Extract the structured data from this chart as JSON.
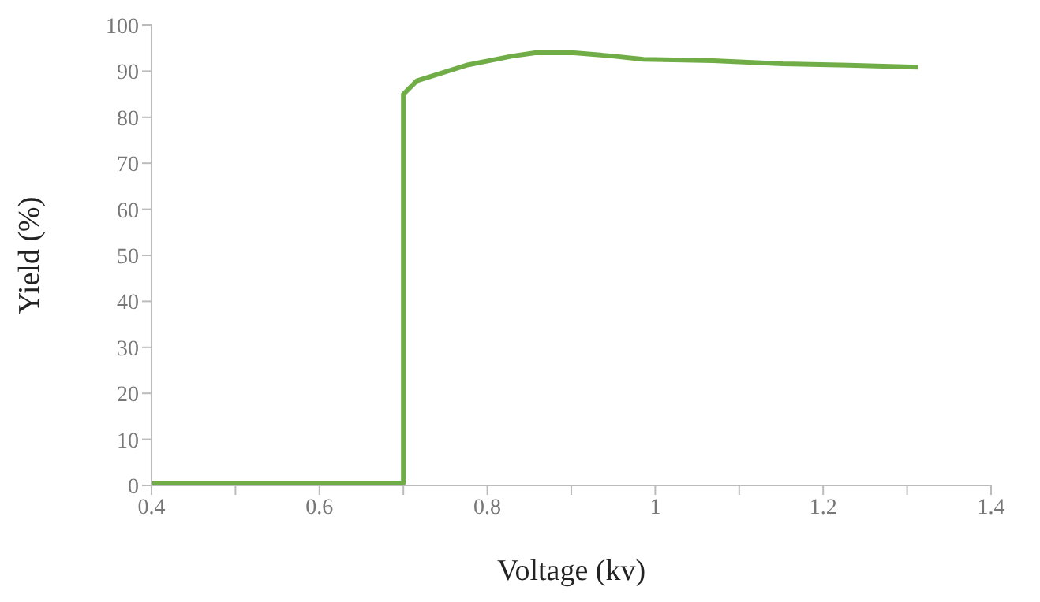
{
  "chart_data": {
    "type": "line",
    "xlabel": "Voltage (kv)",
    "ylabel": "Yield (%)",
    "x": [
      0.4,
      0.7,
      0.7,
      0.716,
      0.775,
      0.83,
      0.857,
      0.903,
      0.949,
      0.986,
      1.069,
      1.152,
      1.23,
      1.313
    ],
    "series": [
      {
        "color": "#70ad47",
        "values": [
          0.5,
          0.5,
          85,
          87.9,
          91.3,
          93.3,
          94,
          94,
          93.3,
          92.6,
          92.3,
          91.6,
          91.3,
          90.9
        ]
      }
    ],
    "xlim": [
      0.4,
      1.4
    ],
    "xticks": [
      0.4,
      {
        "value": 0.5,
        "label": null
      },
      0.6,
      {
        "value": 0.7,
        "label": null
      },
      0.8,
      {
        "value": 0.9,
        "label": null
      },
      1,
      {
        "value": 1.1,
        "label": null
      },
      1.2,
      {
        "value": 1.3,
        "label": null
      },
      1.4
    ],
    "ylim": [
      0,
      100
    ],
    "yticks": [
      0,
      10,
      20,
      30,
      40,
      50,
      60,
      70,
      80,
      90,
      100
    ],
    "grid": false,
    "marker": "none",
    "line_style": "solid"
  }
}
